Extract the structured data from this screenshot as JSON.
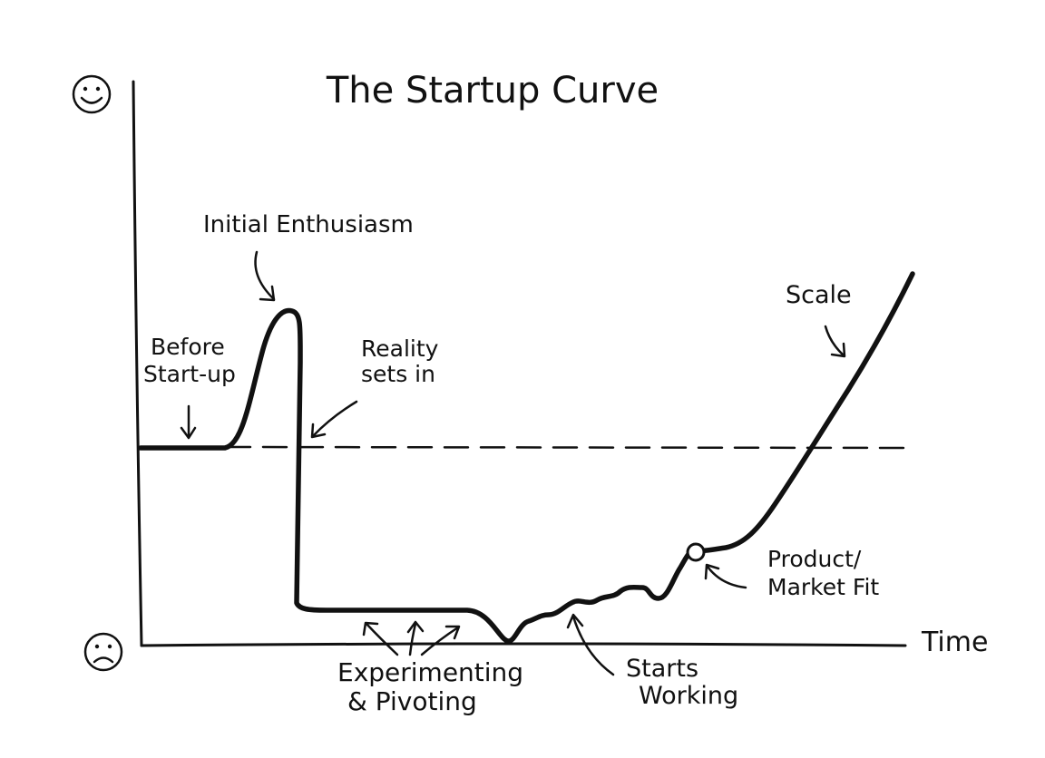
{
  "title": "The Startup Curve",
  "axes": {
    "x_label": "Time",
    "y_top_icon": "happy-face-icon",
    "y_bottom_icon": "sad-face-icon"
  },
  "annotations": {
    "initial_enthusiasm": "Initial Enthusiasm",
    "before_startup_line1": "Before",
    "before_startup_line2": "Start-up",
    "reality_line1": "Reality",
    "reality_line2": "sets in",
    "experimenting_line1": "Experimenting",
    "experimenting_line2": "& Pivoting",
    "starts_working_line1": "Starts",
    "starts_working_line2": "Working",
    "product_market_line1": "Product/",
    "product_market_line2": "Market Fit",
    "scale": "Scale"
  },
  "colors": {
    "ink": "#111111",
    "background": "#ffffff"
  }
}
